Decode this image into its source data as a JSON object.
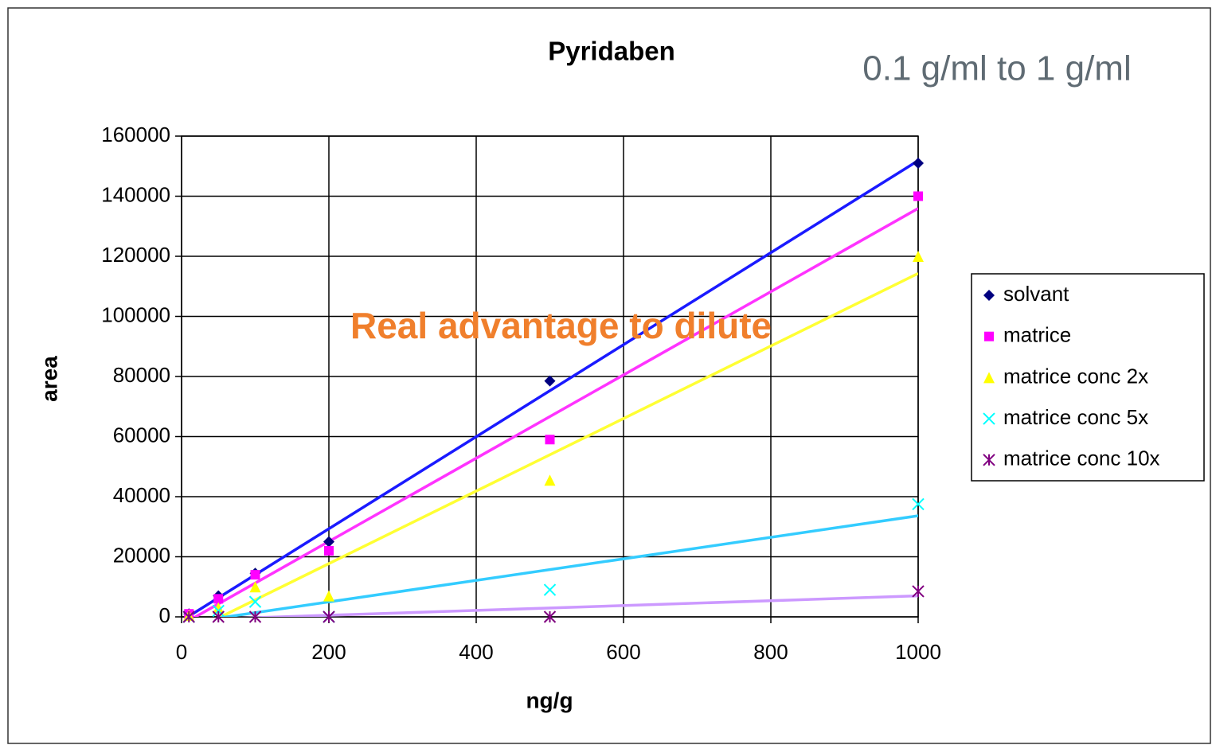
{
  "chart_data": {
    "type": "scatter",
    "title": "Pyridaben",
    "subtitle": "0.1 g/ml to 1 g/ml",
    "annotation": "Real advantage to dilute",
    "x_label": "ng/g",
    "y_label": "area",
    "x": [
      10,
      50,
      100,
      200,
      500,
      1000
    ],
    "series": [
      {
        "name": "solvant",
        "color": "#000080",
        "marker": "diamond",
        "trendline_color": "#1a1aff",
        "values": [
          1000,
          7000,
          14500,
          25000,
          78500,
          151000
        ]
      },
      {
        "name": "matrice",
        "color": "#ff00ff",
        "marker": "square",
        "trendline_color": "#ff33ff",
        "values": [
          1000,
          6000,
          14000,
          22000,
          59000,
          140000
        ]
      },
      {
        "name": "matrice conc 2x",
        "color": "#ffff00",
        "marker": "triangle",
        "trendline_color": "#ffff33",
        "values": [
          500,
          3000,
          10000,
          7000,
          45500,
          120000
        ]
      },
      {
        "name": "matrice conc 5x",
        "color": "#00ffff",
        "marker": "x",
        "trendline_color": "#33ccff",
        "values": [
          0,
          2000,
          5000,
          0,
          9000,
          37500
        ]
      },
      {
        "name": "matrice conc 10x",
        "color": "#800080",
        "marker": "star",
        "trendline_color": "#cc99ff",
        "values": [
          0,
          0,
          0,
          0,
          0,
          8500
        ]
      }
    ],
    "trendline": true,
    "xlim": [
      0,
      1000
    ],
    "xticks": [
      0,
      200,
      400,
      600,
      800,
      1000
    ],
    "ylim": [
      0,
      160000
    ],
    "yticks": [
      0,
      20000,
      40000,
      60000,
      80000,
      100000,
      120000,
      140000,
      160000
    ],
    "grid": true,
    "legend": "right"
  }
}
